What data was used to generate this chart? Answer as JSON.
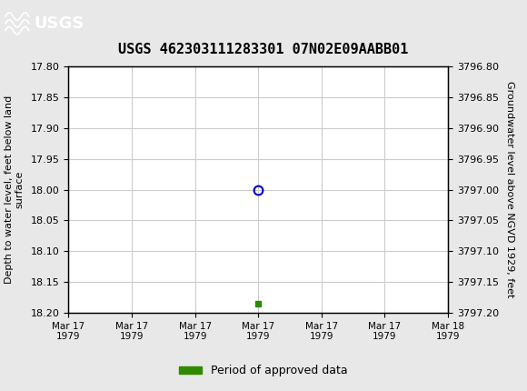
{
  "title": "USGS 462303111283301 07N02E09AABB01",
  "ylabel_left": "Depth to water level, feet below land\nsurface",
  "ylabel_right": "Groundwater level above NGVD 1929, feet",
  "ylim_left": [
    17.8,
    18.2
  ],
  "ylim_right": [
    3796.8,
    3797.2
  ],
  "yticks_left": [
    17.8,
    17.85,
    17.9,
    17.95,
    18.0,
    18.05,
    18.1,
    18.15,
    18.2
  ],
  "yticks_right": [
    3796.8,
    3796.85,
    3796.9,
    3796.95,
    3797.0,
    3797.05,
    3797.1,
    3797.15,
    3797.2
  ],
  "xlim": [
    0,
    6
  ],
  "xtick_labels": [
    "Mar 17\n1979",
    "Mar 17\n1979",
    "Mar 17\n1979",
    "Mar 17\n1979",
    "Mar 17\n1979",
    "Mar 17\n1979",
    "Mar 18\n1979"
  ],
  "xtick_positions": [
    0,
    1,
    2,
    3,
    4,
    5,
    6
  ],
  "data_point_x": 3,
  "data_point_y": 18.0,
  "green_square_x": 3,
  "green_square_y": 18.185,
  "header_color": "#1a6b3c",
  "grid_color": "#cccccc",
  "background_color": "#e8e8e8",
  "plot_bg_color": "#ffffff",
  "data_point_color": "#0000cc",
  "green_color": "#2e8b00",
  "legend_label": "Period of approved data"
}
